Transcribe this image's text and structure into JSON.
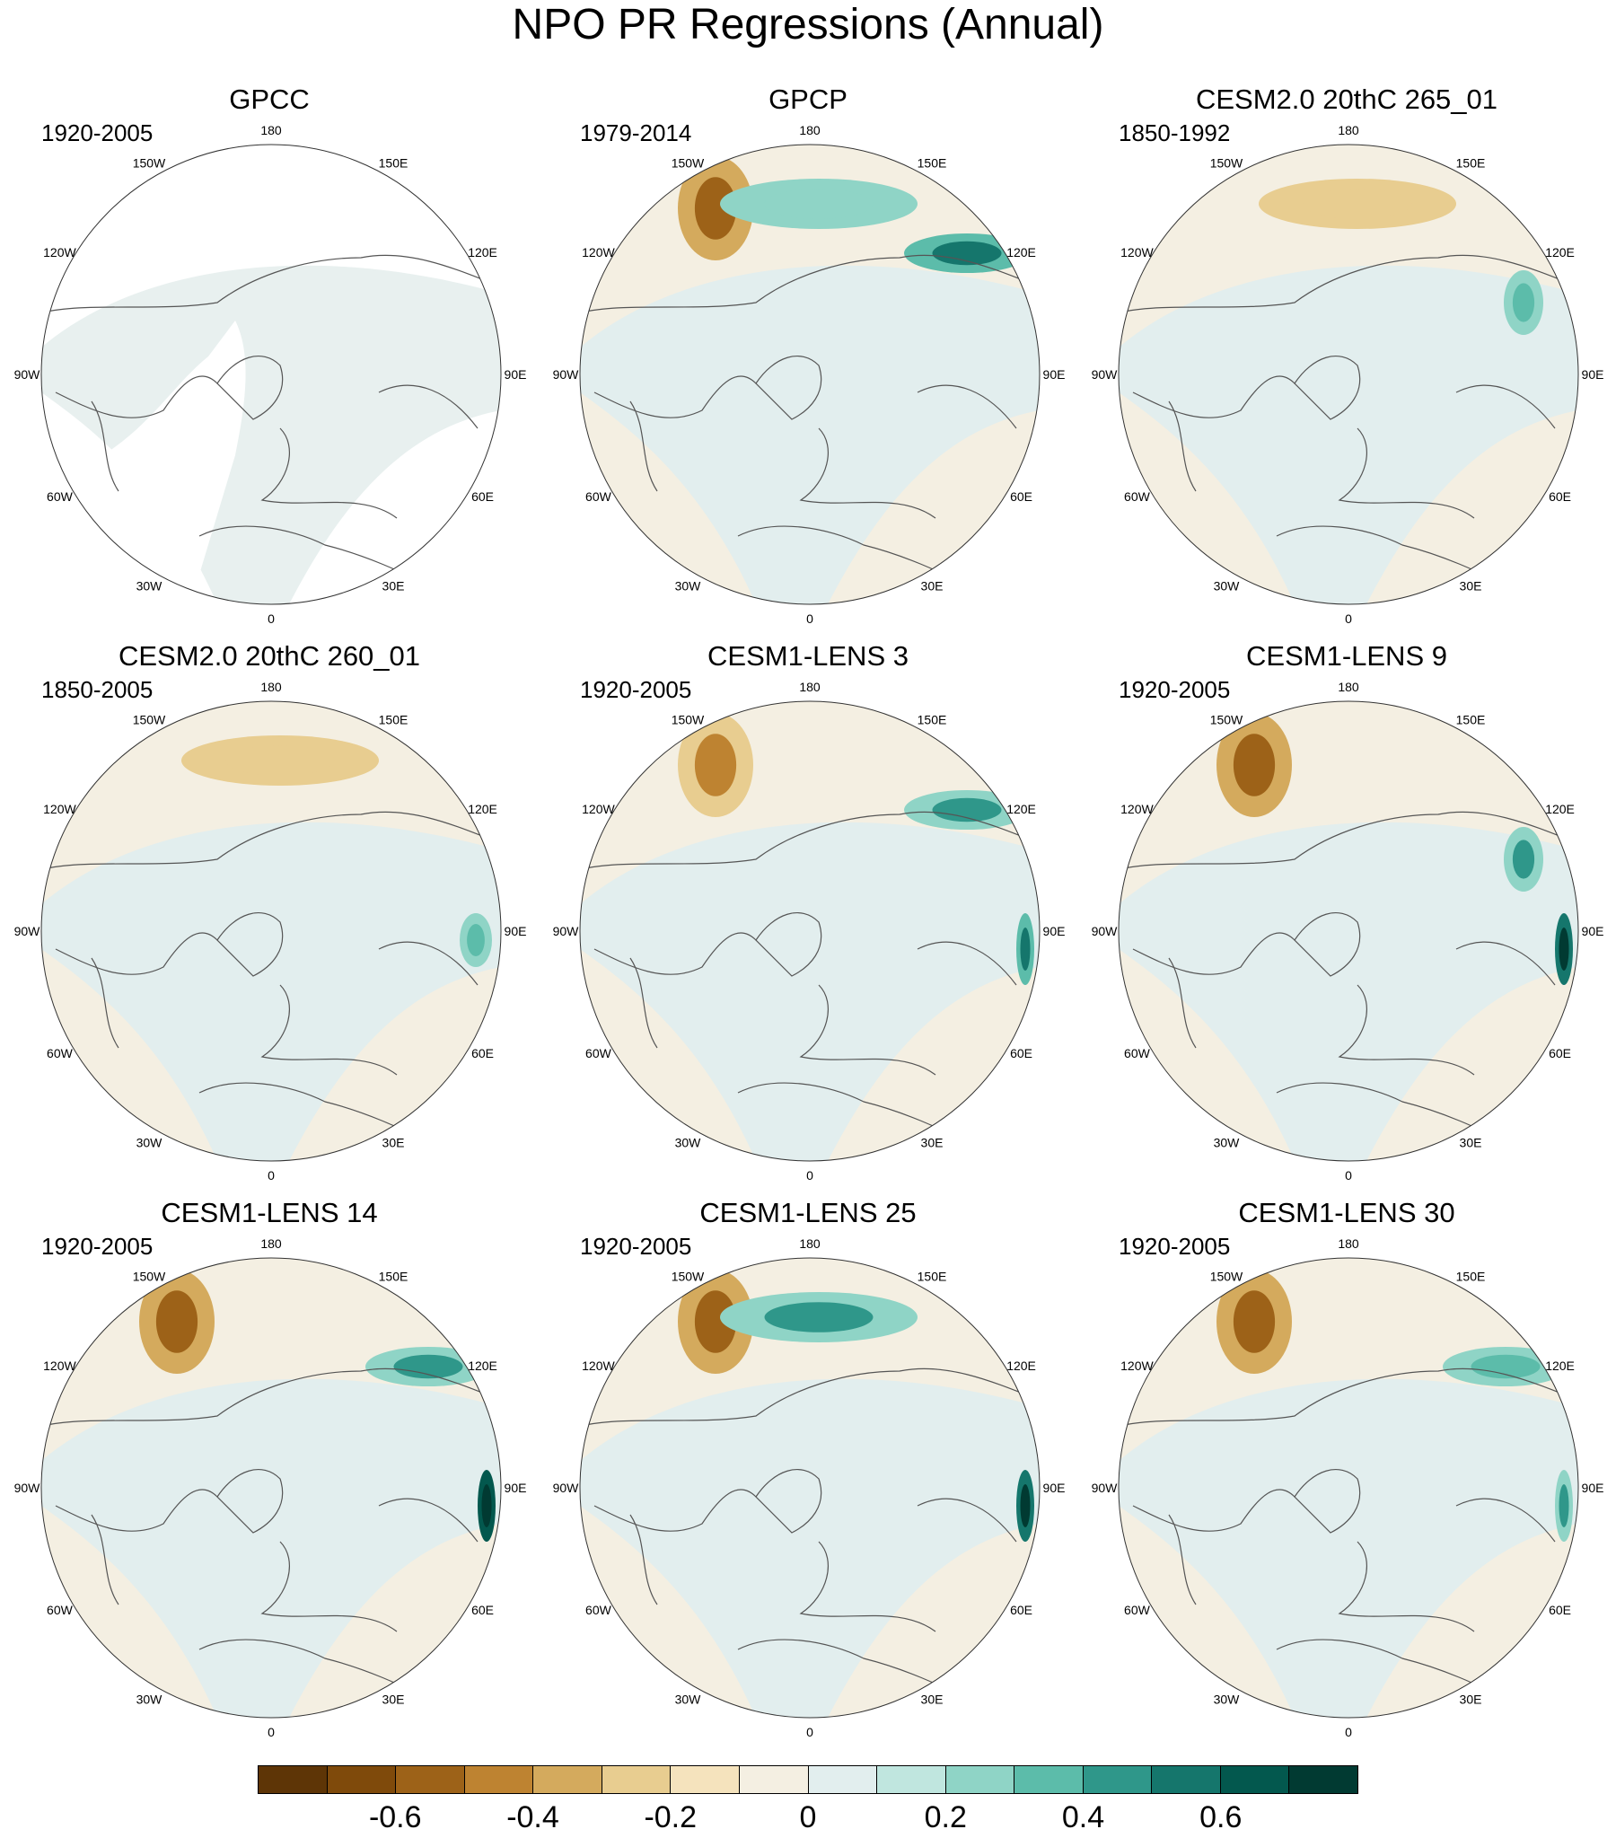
{
  "title": "NPO PR Regressions (Annual)",
  "lon_labels": [
    "180",
    "150E",
    "120E",
    "90E",
    "60E",
    "30E",
    "0",
    "30W",
    "60W",
    "90W",
    "120W",
    "150W"
  ],
  "panels": [
    {
      "title": "GPCC",
      "period": "1920-2005",
      "anomalies": []
    },
    {
      "title": "GPCP",
      "period": "1979-2014",
      "anomalies": [
        {
          "sign": "neg",
          "level": 0.5,
          "region": "gulf-of-alaska"
        },
        {
          "sign": "pos",
          "level": 0.5,
          "region": "eastern-siberia"
        },
        {
          "sign": "pos",
          "level": 0.2,
          "region": "north-pacific"
        }
      ]
    },
    {
      "title": "CESM2.0 20thC 265_01",
      "period": "1850-1992",
      "anomalies": [
        {
          "sign": "neg",
          "level": 0.2,
          "region": "north-pacific"
        },
        {
          "sign": "pos",
          "level": 0.3,
          "region": "alaska-coast"
        }
      ]
    },
    {
      "title": "CESM2.0 20thC 260_01",
      "period": "1850-2005",
      "anomalies": [
        {
          "sign": "neg",
          "level": 0.2,
          "region": "north-pacific"
        },
        {
          "sign": "pos",
          "level": 0.3,
          "region": "tibet"
        }
      ]
    },
    {
      "title": "CESM1-LENS 3",
      "period": "1920-2005",
      "anomalies": [
        {
          "sign": "neg",
          "level": 0.4,
          "region": "gulf-of-alaska"
        },
        {
          "sign": "pos",
          "level": 0.5,
          "region": "himalaya"
        },
        {
          "sign": "pos",
          "level": 0.4,
          "region": "eastern-siberia"
        }
      ]
    },
    {
      "title": "CESM1-LENS 9",
      "period": "1920-2005",
      "anomalies": [
        {
          "sign": "neg",
          "level": 0.5,
          "region": "gulf-of-alaska"
        },
        {
          "sign": "pos",
          "level": 0.7,
          "region": "himalaya"
        },
        {
          "sign": "pos",
          "level": 0.4,
          "region": "alaska-coast"
        }
      ]
    },
    {
      "title": "CESM1-LENS 14",
      "period": "1920-2005",
      "anomalies": [
        {
          "sign": "neg",
          "level": 0.5,
          "region": "gulf-of-alaska"
        },
        {
          "sign": "pos",
          "level": 0.8,
          "region": "himalaya"
        },
        {
          "sign": "pos",
          "level": 0.4,
          "region": "eastern-siberia"
        }
      ]
    },
    {
      "title": "CESM1-LENS 25",
      "period": "1920-2005",
      "anomalies": [
        {
          "sign": "neg",
          "level": 0.5,
          "region": "gulf-of-alaska"
        },
        {
          "sign": "pos",
          "level": 0.7,
          "region": "himalaya"
        },
        {
          "sign": "pos",
          "level": 0.4,
          "region": "north-pacific"
        }
      ]
    },
    {
      "title": "CESM1-LENS 30",
      "period": "1920-2005",
      "anomalies": [
        {
          "sign": "neg",
          "level": 0.5,
          "region": "gulf-of-alaska"
        },
        {
          "sign": "pos",
          "level": 0.4,
          "region": "himalaya"
        },
        {
          "sign": "pos",
          "level": 0.3,
          "region": "eastern-siberia"
        }
      ]
    }
  ],
  "colorbar": {
    "colors": [
      "#5e3506",
      "#7f4a0b",
      "#9d6218",
      "#be8331",
      "#d4aa5d",
      "#e8cd90",
      "#f5e3bd",
      "#f4efe2",
      "#e2eeee",
      "#c0e6df",
      "#8fd4c6",
      "#5cbcaa",
      "#2f978a",
      "#15766c",
      "#03584e",
      "#013a32"
    ],
    "ticks": [
      {
        "label": "-0.6",
        "value": -0.6
      },
      {
        "label": "-0.4",
        "value": -0.4
      },
      {
        "label": "-0.2",
        "value": -0.2
      },
      {
        "label": "0",
        "value": 0
      },
      {
        "label": "0.2",
        "value": 0.2
      },
      {
        "label": "0.4",
        "value": 0.4
      },
      {
        "label": "0.6",
        "value": 0.6
      }
    ],
    "range": [
      -0.8,
      0.8
    ]
  }
}
